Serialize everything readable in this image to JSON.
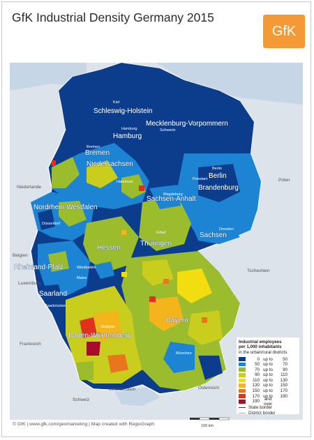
{
  "title": "GfK Industrial Density Germany 2015",
  "logo_text": "GfK",
  "footer": "© GfK | www.gfk.com/geomarketing | Map created with RegioGraph",
  "scale_label": "100 km",
  "legend": {
    "title_line1": "Industrial employees",
    "title_line2": "per 1,000 inhabitants",
    "subtitle": "in the urban/rural districts",
    "classes": [
      {
        "low": "0",
        "sep": "up to",
        "high": "50",
        "color": "#0b3d8c"
      },
      {
        "low": "50",
        "sep": "up to",
        "high": "70",
        "color": "#1d84d3"
      },
      {
        "low": "70",
        "sep": "up to",
        "high": "90",
        "color": "#9bbd2d"
      },
      {
        "low": "90",
        "sep": "up to",
        "high": "110",
        "color": "#c9cd1e"
      },
      {
        "low": "110",
        "sep": "up to",
        "high": "130",
        "color": "#f2dd10"
      },
      {
        "low": "130",
        "sep": "up to",
        "high": "150",
        "color": "#f3b41c"
      },
      {
        "low": "150",
        "sep": "up to",
        "high": "170",
        "color": "#e8761c"
      },
      {
        "low": "170",
        "sep": "up to",
        "high": "190",
        "color": "#e0301e"
      },
      {
        "low": "190",
        "sep": "and over",
        "high": "",
        "color": "#a80c2a"
      }
    ],
    "state_border": "State border",
    "district_border": "District border"
  },
  "states": [
    "Schleswig-Holstein",
    "Mecklenburg-Vorpommern",
    "Hamburg",
    "Bremen",
    "Niedersachsen",
    "Berlin",
    "Brandenburg",
    "Sachsen-Anhalt",
    "Nordrhein-Westfalen",
    "Hessen",
    "Thüringen",
    "Sachsen",
    "Rheinland-Pfalz",
    "Saarland",
    "Bayern",
    "Baden-Württemberg"
  ],
  "cities": [
    "Kiel",
    "Schwerin",
    "Hamburg",
    "Bremen",
    "Hannover",
    "Potsdam",
    "Berlin",
    "Magdeburg",
    "Düsseldorf",
    "Dresden",
    "Erfurt",
    "Wiesbaden",
    "Mainz",
    "Saarbrücken",
    "Stuttgart",
    "München"
  ],
  "countries": [
    "Niederlande",
    "Belgien",
    "Luxemburg",
    "Frankreich",
    "Schweiz",
    "Liechtenstein",
    "Österreich",
    "Tschechien",
    "Polen"
  ]
}
